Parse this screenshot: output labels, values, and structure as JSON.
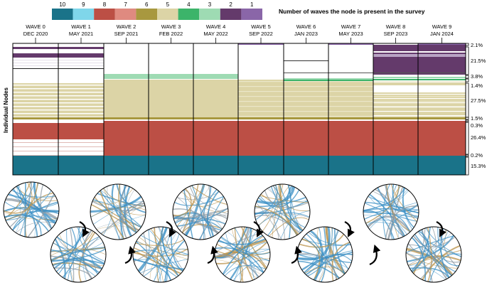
{
  "legend": {
    "title": "Number of waves the node is present in the survey",
    "items": [
      {
        "label": "10",
        "color": "#1a7389"
      },
      {
        "label": "9",
        "color": "#7fd6ea"
      },
      {
        "label": "8",
        "color": "#bc4f45"
      },
      {
        "label": "7",
        "color": "#df8a80"
      },
      {
        "label": "6",
        "color": "#a8983f"
      },
      {
        "label": "5",
        "color": "#dcd4a6"
      },
      {
        "label": "4",
        "color": "#3cb46a"
      },
      {
        "label": "3",
        "color": "#9edbb3"
      },
      {
        "label": "2",
        "color": "#643a6b"
      },
      {
        "label": "1",
        "color": "#8a66a8"
      }
    ]
  },
  "waves": [
    {
      "name": "WAVE 0",
      "date": "DEC 2020"
    },
    {
      "name": "WAVE 1",
      "date": "MAY 2021"
    },
    {
      "name": "WAVE 2",
      "date": "SEP 2021"
    },
    {
      "name": "WAVE 3",
      "date": "FEB 2022"
    },
    {
      "name": "WAVE 4",
      "date": "MAY 2022"
    },
    {
      "name": "WAVE 5",
      "date": "SEP 2022"
    },
    {
      "name": "WAVE 6",
      "date": "JAN 2023"
    },
    {
      "name": "WAVE 7",
      "date": "MAY 2023"
    },
    {
      "name": "WAVE 8",
      "date": "SEP 2023"
    },
    {
      "name": "WAVE 9",
      "date": "JAN 2024"
    }
  ],
  "y_axis_label": "Individual Nodes",
  "percentages": [
    "2.1%",
    "21.5%",
    "3.8%",
    "1.4%",
    "27.5%",
    "1.5%",
    "0.3%",
    "26.4%",
    "0.2%",
    "15.3%"
  ],
  "colors": {
    "frame": "#000000",
    "network_blue": "#3a8fc4",
    "network_gold": "#b9914a",
    "network_grey": "#8d9aa3"
  }
}
